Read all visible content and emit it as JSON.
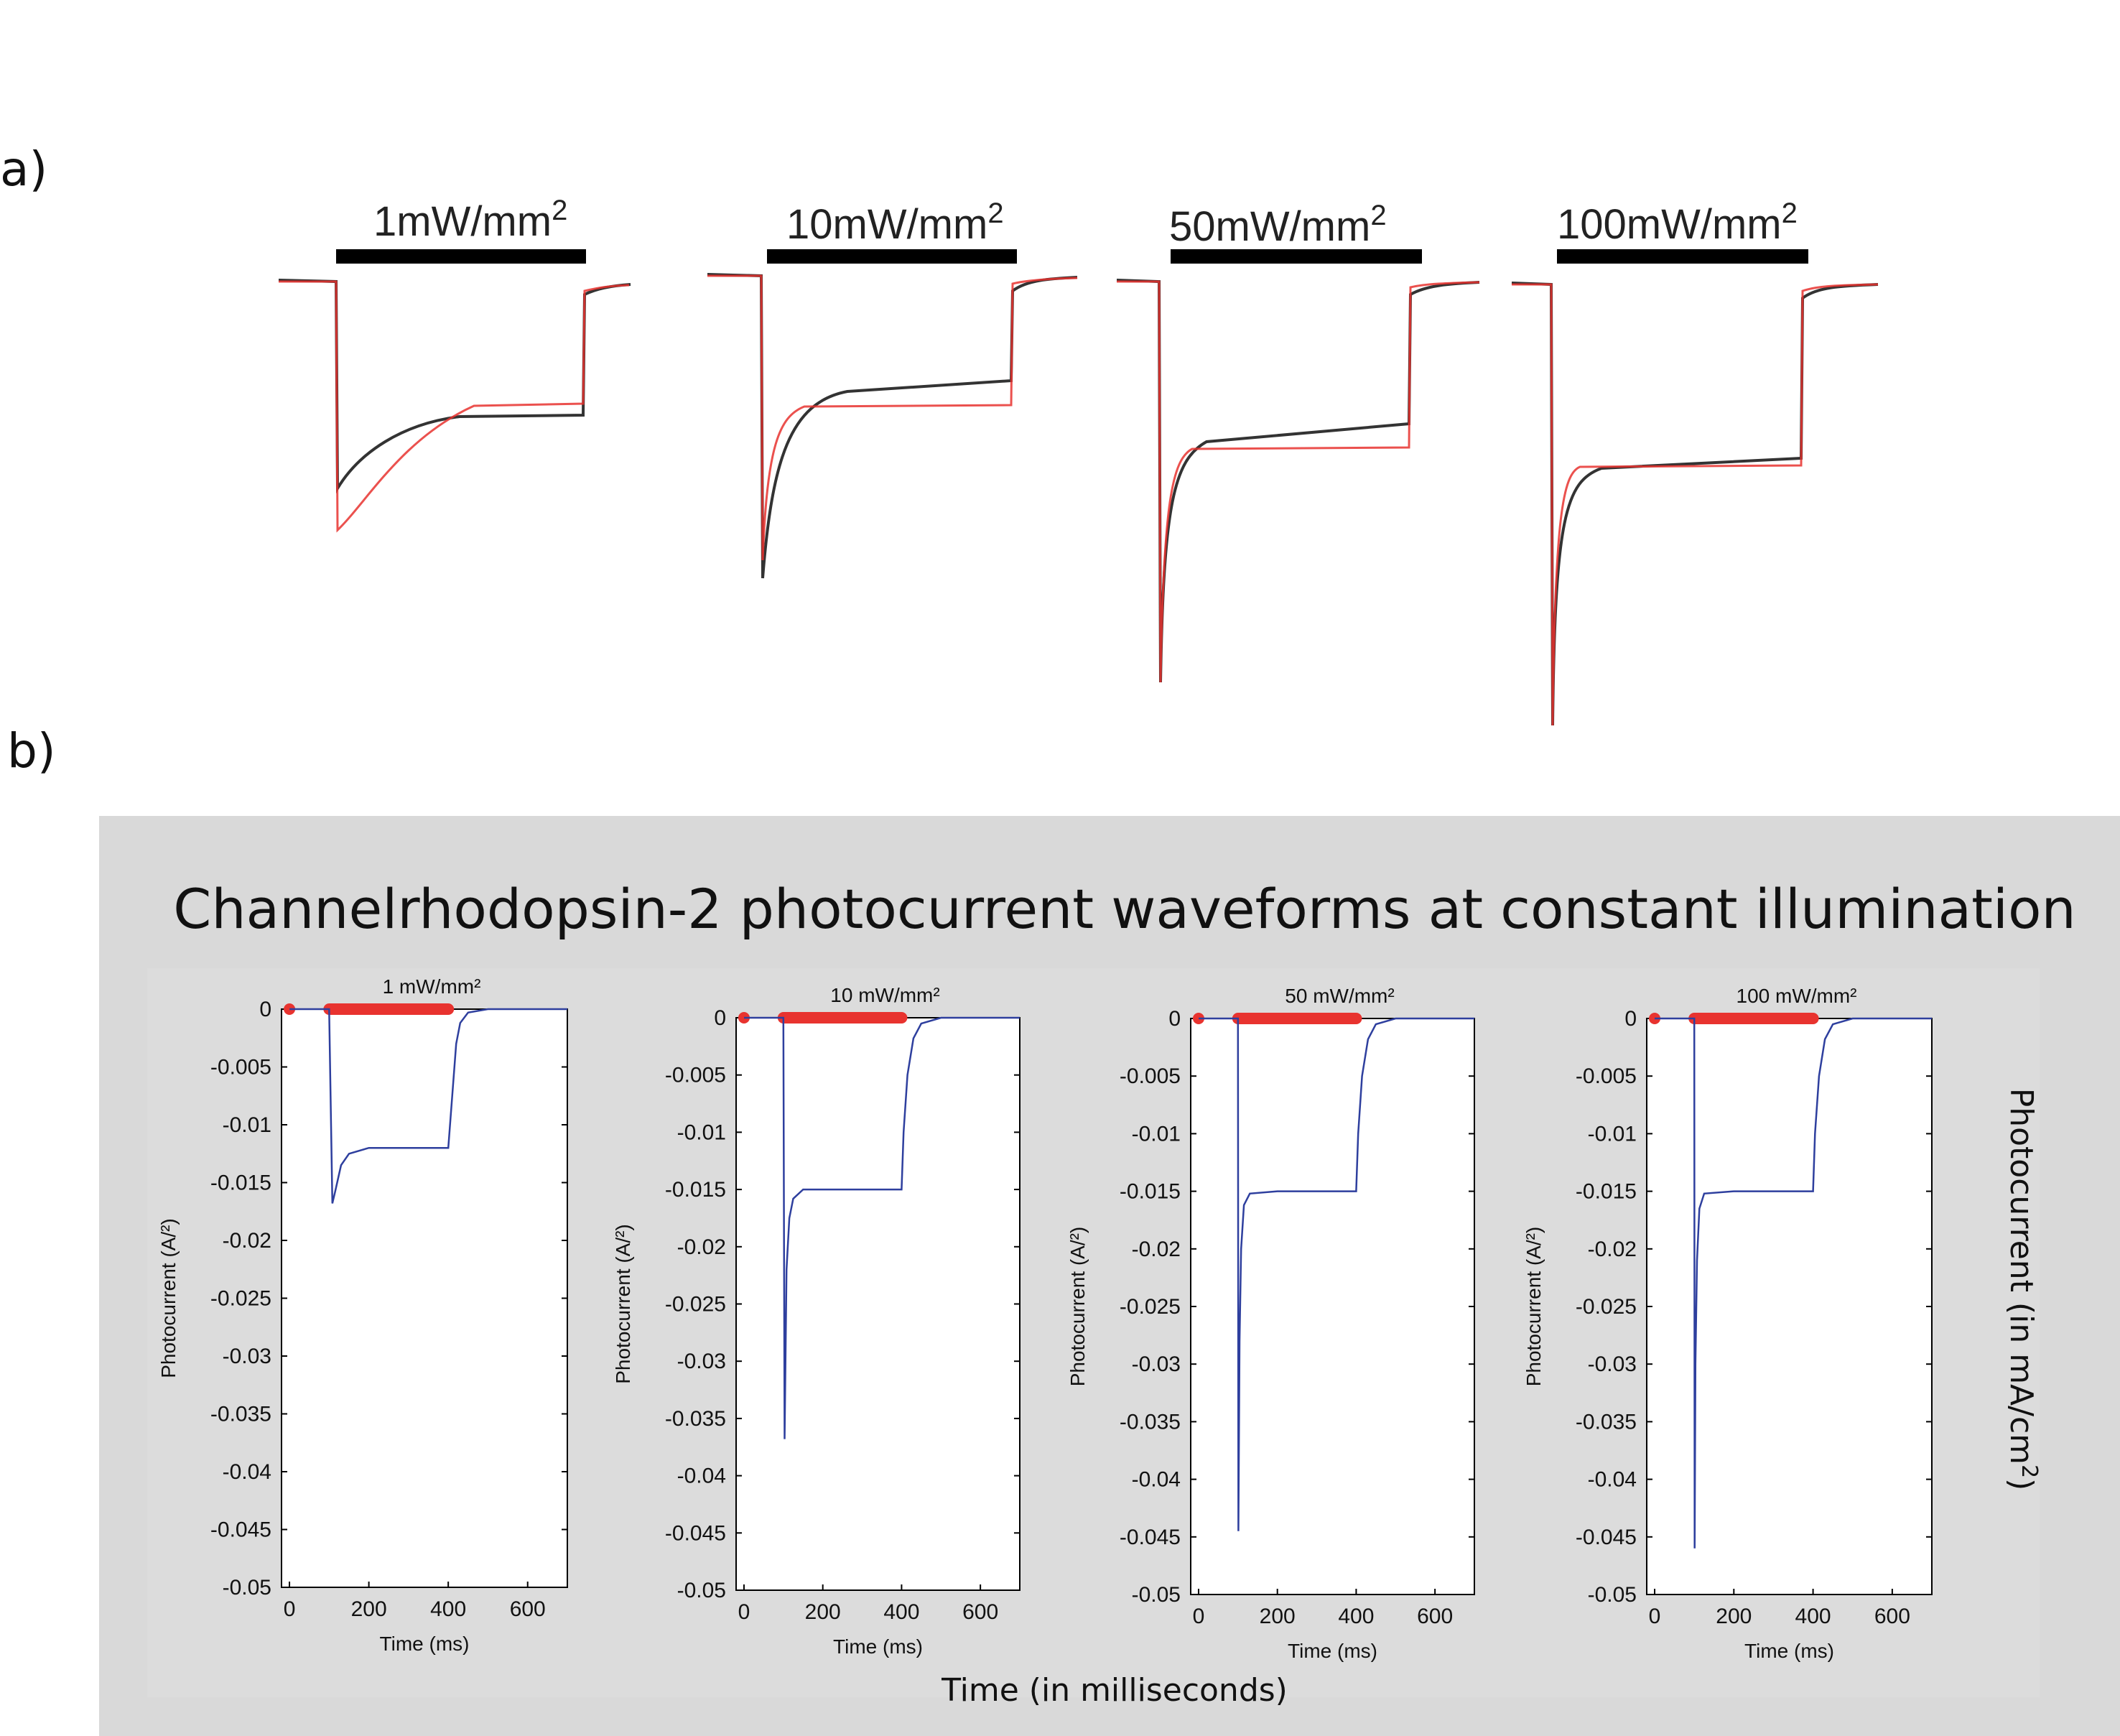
{
  "panel_a": {
    "label": "a)",
    "stimulus_labels": [
      {
        "text": "1mW/mm",
        "sup": "2"
      },
      {
        "text": "10mW/mm",
        "sup": "2"
      },
      {
        "text": "50mW/mm",
        "sup": "2"
      },
      {
        "text": "100mW/mm",
        "sup": "2"
      }
    ],
    "trace_colors": {
      "recorded": "#222222",
      "model": "#e8332f",
      "stimulus_bar": "#000000"
    }
  },
  "panel_b": {
    "label": "b)",
    "title": "Channelrhodopsin-2 photocurrent waveforms at constant illumination",
    "shared_xlabel": "Time (in milliseconds)",
    "shared_ylabel": "Photocurrent (in mA/cm",
    "shared_ylabel_sup": "2",
    "shared_ylabel_tail": ")",
    "background_color": "#d9d9d9",
    "line_color": "#2e3f9e",
    "marker_color": "#e8332f"
  },
  "chart_data": [
    {
      "type": "line",
      "title": "1 mW/mm²",
      "xlabel": "Time (ms)",
      "ylabel": "Photocurrent (A/²)",
      "xlim": [
        -20,
        700
      ],
      "ylim": [
        -0.05,
        0
      ],
      "xticks": [
        "0",
        "200",
        "400",
        "600"
      ],
      "yticks": [
        "0",
        "-0.005",
        "-0.01",
        "-0.015",
        "-0.02",
        "-0.025",
        "-0.03",
        "-0.035",
        "-0.04",
        "-0.045",
        "-0.05"
      ],
      "stimulus_on_ms": 100,
      "stimulus_off_ms": 400,
      "series": [
        {
          "x": [
            0,
            100,
            108,
            115,
            130,
            150,
            200,
            300,
            400,
            410,
            420,
            430,
            450,
            500,
            700
          ],
          "y": [
            0,
            0,
            -0.0168,
            -0.0158,
            -0.0135,
            -0.0125,
            -0.012,
            -0.012,
            -0.012,
            -0.0075,
            -0.003,
            -0.0012,
            -0.0003,
            0,
            0
          ]
        }
      ]
    },
    {
      "type": "line",
      "title": "10 mW/mm²",
      "xlabel": "Time (ms)",
      "ylabel": "Photocurrent (A/²)",
      "xlim": [
        -20,
        700
      ],
      "ylim": [
        -0.05,
        0
      ],
      "xticks": [
        "0",
        "200",
        "400",
        "600"
      ],
      "yticks": [
        "0",
        "-0.005",
        "-0.01",
        "-0.015",
        "-0.02",
        "-0.025",
        "-0.03",
        "-0.035",
        "-0.04",
        "-0.045",
        "-0.05"
      ],
      "stimulus_on_ms": 100,
      "stimulus_off_ms": 400,
      "series": [
        {
          "x": [
            0,
            100,
            103,
            108,
            115,
            125,
            150,
            250,
            400,
            405,
            415,
            430,
            450,
            500,
            700
          ],
          "y": [
            0,
            0,
            -0.0368,
            -0.022,
            -0.0175,
            -0.0158,
            -0.015,
            -0.015,
            -0.015,
            -0.01,
            -0.005,
            -0.0018,
            -0.0005,
            0,
            0
          ]
        }
      ]
    },
    {
      "type": "line",
      "title": "50 mW/mm²",
      "xlabel": "Time (ms)",
      "ylabel": "Photocurrent (A/²)",
      "xlim": [
        -20,
        700
      ],
      "ylim": [
        -0.05,
        0
      ],
      "xticks": [
        "0",
        "200",
        "400",
        "600"
      ],
      "yticks": [
        "0",
        "-0.005",
        "-0.01",
        "-0.015",
        "-0.02",
        "-0.025",
        "-0.03",
        "-0.035",
        "-0.04",
        "-0.045",
        "-0.05"
      ],
      "stimulus_on_ms": 100,
      "stimulus_off_ms": 400,
      "series": [
        {
          "x": [
            0,
            100,
            101,
            104,
            108,
            115,
            130,
            200,
            400,
            405,
            415,
            430,
            450,
            500,
            700
          ],
          "y": [
            0,
            0,
            -0.0445,
            -0.028,
            -0.02,
            -0.0162,
            -0.0152,
            -0.015,
            -0.015,
            -0.01,
            -0.005,
            -0.0018,
            -0.0005,
            0,
            0
          ]
        }
      ]
    },
    {
      "type": "line",
      "title": "100 mW/mm²",
      "xlabel": "Time (ms)",
      "ylabel": "Photocurrent (A/²)",
      "xlim": [
        -20,
        700
      ],
      "ylim": [
        -0.05,
        0
      ],
      "xticks": [
        "0",
        "200",
        "400",
        "600"
      ],
      "yticks": [
        "0",
        "-0.005",
        "-0.01",
        "-0.015",
        "-0.02",
        "-0.025",
        "-0.03",
        "-0.035",
        "-0.04",
        "-0.045",
        "-0.05"
      ],
      "stimulus_on_ms": 100,
      "stimulus_off_ms": 400,
      "series": [
        {
          "x": [
            0,
            100,
            101,
            103,
            107,
            113,
            125,
            200,
            400,
            405,
            415,
            430,
            450,
            500,
            700
          ],
          "y": [
            0,
            0,
            -0.046,
            -0.03,
            -0.021,
            -0.0165,
            -0.0152,
            -0.015,
            -0.015,
            -0.01,
            -0.005,
            -0.0018,
            -0.0005,
            0,
            0
          ]
        }
      ]
    }
  ]
}
